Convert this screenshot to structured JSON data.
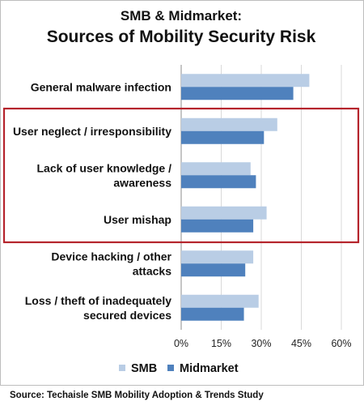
{
  "chart_data": {
    "type": "bar",
    "orientation": "horizontal",
    "title": "SMB & Midmarket:",
    "subtitle": "Sources of Mobility Security Risk",
    "categories": [
      [
        "General malware infection"
      ],
      [
        "User neglect / irresponsibility"
      ],
      [
        "Lack of user knowledge /",
        "awareness"
      ],
      [
        "User mishap"
      ],
      [
        "Device hacking / other",
        "attacks"
      ],
      [
        "Loss / theft of inadequately",
        "secured devices"
      ]
    ],
    "series": [
      {
        "name": "SMB",
        "color": "#b9cde5",
        "values": [
          48,
          36,
          26,
          32,
          27,
          29
        ]
      },
      {
        "name": "Midmarket",
        "color": "#4f81bd",
        "values": [
          42,
          31,
          28,
          27,
          24,
          23.5
        ]
      }
    ],
    "xlim": [
      0,
      60
    ],
    "xticks": [
      "0%",
      "15%",
      "30%",
      "45%",
      "60%"
    ],
    "grid": true,
    "legend": "bottom",
    "highlight": {
      "categories": [
        1,
        2,
        3
      ],
      "color": "#b5242c"
    },
    "source": "Source: Techaisle SMB Mobility Adoption & Trends Study"
  }
}
